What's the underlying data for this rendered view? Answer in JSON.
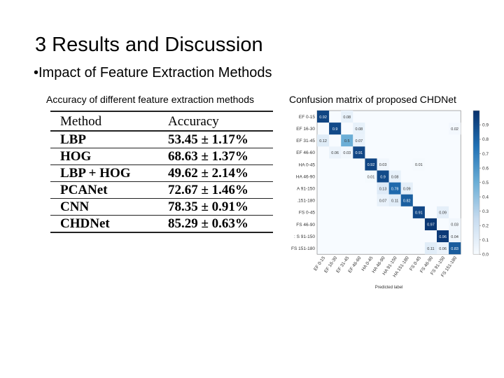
{
  "slide": {
    "title": "3 Results and Discussion",
    "bullet": "•Impact of Feature Extraction Methods",
    "left_caption": "Accuracy of different feature extraction methods",
    "right_caption": "Confusion matrix of proposed CHDNet"
  },
  "table": {
    "headers": [
      "Method",
      "Accuracy"
    ],
    "rows": [
      [
        "LBP",
        "53.45 ± 1.17%"
      ],
      [
        "HOG",
        "68.63 ± 1.37%"
      ],
      [
        "LBP + HOG",
        "49.62 ± 2.14%"
      ],
      [
        "PCANet",
        "72.67 ± 1.46%"
      ],
      [
        "CNN",
        "78.35 ± 0.91%"
      ],
      [
        "CHDNet",
        "85.29 ± 0.63%"
      ]
    ]
  },
  "chart_data": {
    "type": "heatmap",
    "title": "",
    "xlabel": "Predicted label",
    "ylabel": "",
    "row_labels": [
      "EF 0-15",
      "EF 16-30",
      "EF 31-45",
      "EF 46-60",
      "HA 0-45",
      "HA 46-90",
      "HA 91-150",
      "HA 151-180",
      "FS 0-45",
      "FS 46-90",
      "FS 91-150",
      "FS 151-180"
    ],
    "row_labels_visible": [
      "EF 0-15",
      "EF 16-30",
      "EF 31-45",
      "EF 46-60",
      "HA 0-45",
      "HA 46-90",
      "A 91-150",
      ".151-180",
      "FS 0-45",
      "FS 46-90",
      ": S 91-150",
      "FS 151-180"
    ],
    "col_labels": [
      "EF 0-15",
      "EF 16-30",
      "EF 31-45",
      "EF 46-60",
      "HA 0-45",
      "HA 46-90",
      "HA 91-150",
      "HA 151-180",
      "FS 0-45",
      "FS 46-90",
      "FS 91-150",
      "FS 151-180"
    ],
    "cells": [
      {
        "r": 0,
        "c": 0,
        "v": 0.92,
        "label": "0.92"
      },
      {
        "r": 0,
        "c": 2,
        "v": 0.08,
        "label": "0.08"
      },
      {
        "r": 1,
        "c": 1,
        "v": 0.9,
        "label": "0.9"
      },
      {
        "r": 1,
        "c": 3,
        "v": 0.08,
        "label": "0.08"
      },
      {
        "r": 1,
        "c": 11,
        "v": 0.02,
        "label": "0.02"
      },
      {
        "r": 2,
        "c": 0,
        "v": 0.12,
        "label": "0.12"
      },
      {
        "r": 2,
        "c": 2,
        "v": 0.5,
        "label": "0.5"
      },
      {
        "r": 2,
        "c": 3,
        "v": 0.07,
        "label": "0.07"
      },
      {
        "r": 3,
        "c": 1,
        "v": 0.06,
        "label": "0.06"
      },
      {
        "r": 3,
        "c": 2,
        "v": 0.03,
        "label": "0.03"
      },
      {
        "r": 3,
        "c": 3,
        "v": 0.91,
        "label": "0.91"
      },
      {
        "r": 4,
        "c": 4,
        "v": 0.92,
        "label": "0.92"
      },
      {
        "r": 4,
        "c": 5,
        "v": 0.03,
        "label": "0.03"
      },
      {
        "r": 4,
        "c": 8,
        "v": 0.01,
        "label": "0.01"
      },
      {
        "r": 5,
        "c": 4,
        "v": 0.01,
        "label": "0.01"
      },
      {
        "r": 5,
        "c": 5,
        "v": 0.9,
        "label": "0.9"
      },
      {
        "r": 5,
        "c": 6,
        "v": 0.08,
        "label": "0.08"
      },
      {
        "r": 6,
        "c": 5,
        "v": 0.13,
        "label": "0.13"
      },
      {
        "r": 6,
        "c": 6,
        "v": 0.78,
        "label": "0.78"
      },
      {
        "r": 6,
        "c": 7,
        "v": 0.09,
        "label": "0.09"
      },
      {
        "r": 7,
        "c": 5,
        "v": 0.07,
        "label": "0.07"
      },
      {
        "r": 7,
        "c": 6,
        "v": 0.11,
        "label": "0.11"
      },
      {
        "r": 7,
        "c": 7,
        "v": 0.82,
        "label": "0.82"
      },
      {
        "r": 8,
        "c": 8,
        "v": 0.91,
        "label": "0.91"
      },
      {
        "r": 8,
        "c": 10,
        "v": 0.09,
        "label": "0.09"
      },
      {
        "r": 9,
        "c": 9,
        "v": 0.97,
        "label": "0.97"
      },
      {
        "r": 9,
        "c": 11,
        "v": 0.03,
        "label": "0.03"
      },
      {
        "r": 10,
        "c": 10,
        "v": 0.96,
        "label": "0.96"
      },
      {
        "r": 10,
        "c": 11,
        "v": 0.04,
        "label": "0.04"
      },
      {
        "r": 11,
        "c": 9,
        "v": 0.11,
        "label": "0.11"
      },
      {
        "r": 11,
        "c": 10,
        "v": 0.06,
        "label": "0.06"
      },
      {
        "r": 11,
        "c": 11,
        "v": 0.83,
        "label": "0.83"
      }
    ],
    "colorbar": {
      "min": 0.0,
      "max": 1.0,
      "ticks": [
        "0.9",
        "0.8",
        "0.7",
        "0.6",
        "0.5",
        "0.4",
        "0.3",
        "0.2",
        "0.1",
        "0.0"
      ],
      "colors": [
        "#f7fbff",
        "#08306b"
      ]
    }
  }
}
